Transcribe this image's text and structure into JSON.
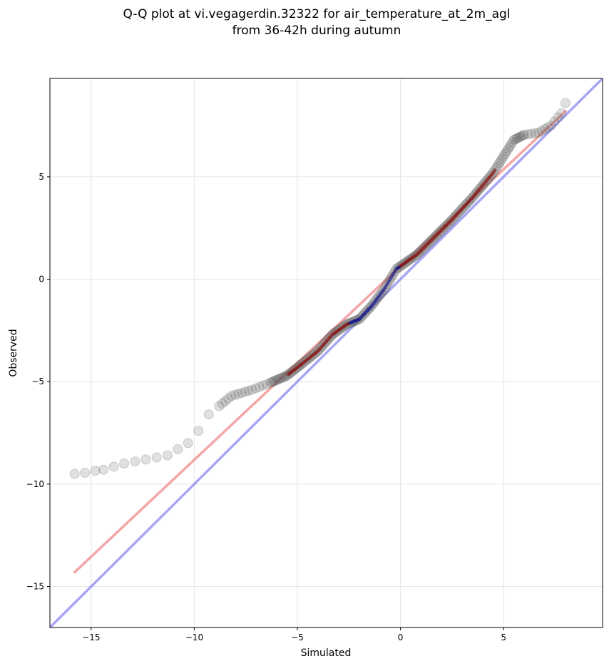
{
  "chart_data": {
    "type": "scatter",
    "title_line1": "Q-Q plot at vi.vegagerdin.32322 for air_temperature_at_2m_agl",
    "title_line2": "from 36-42h during autumn",
    "xlabel": "Simulated",
    "ylabel": "Observed",
    "xlim": [
      -17,
      9.8
    ],
    "ylim": [
      -17,
      9.8
    ],
    "xticks": [
      -15,
      -10,
      -5,
      0,
      5
    ],
    "yticks": [
      -15,
      -10,
      -5,
      0,
      5
    ],
    "grid": true,
    "colors": {
      "points": "#555555",
      "highlight_red": "#8b0000",
      "highlight_blue": "#00008b",
      "fit_line": "#f08080",
      "identity_line": "#8080f0"
    },
    "lines": {
      "fit": {
        "x": [
          -15.8,
          8.0
        ],
        "y": [
          -14.3,
          8.2
        ]
      },
      "identity": {
        "x": [
          -17,
          9.8
        ],
        "y": [
          -17,
          9.8
        ]
      }
    },
    "anchors": [
      [
        -15.8,
        -9.5
      ],
      [
        -15.3,
        -9.45
      ],
      [
        -14.8,
        -9.35
      ],
      [
        -14.4,
        -9.3
      ],
      [
        -13.4,
        -9.0
      ],
      [
        -11.3,
        -8.6
      ],
      [
        -10.8,
        -8.3
      ],
      [
        -10.3,
        -8.0
      ],
      [
        -9.8,
        -7.4
      ],
      [
        -9.3,
        -6.6
      ],
      [
        -8.8,
        -6.2
      ],
      [
        -8.2,
        -5.7
      ],
      [
        -7.2,
        -5.4
      ],
      [
        -6.3,
        -5.05
      ],
      [
        -5.5,
        -4.7
      ],
      [
        -4.8,
        -4.15
      ],
      [
        -4.0,
        -3.5
      ],
      [
        -3.3,
        -2.7
      ],
      [
        -2.6,
        -2.2
      ],
      [
        -2.0,
        -1.95
      ],
      [
        -1.4,
        -1.3
      ],
      [
        -0.8,
        -0.5
      ],
      [
        -0.2,
        0.5
      ],
      [
        0.8,
        1.2
      ],
      [
        1.5,
        1.9
      ],
      [
        2.5,
        2.9
      ],
      [
        3.5,
        4.0
      ],
      [
        4.5,
        5.2
      ],
      [
        5.0,
        6.0
      ],
      [
        5.5,
        6.8
      ],
      [
        6.0,
        7.05
      ],
      [
        6.7,
        7.15
      ],
      [
        7.3,
        7.5
      ],
      [
        7.8,
        8.1
      ],
      [
        8.0,
        8.6
      ]
    ]
  }
}
